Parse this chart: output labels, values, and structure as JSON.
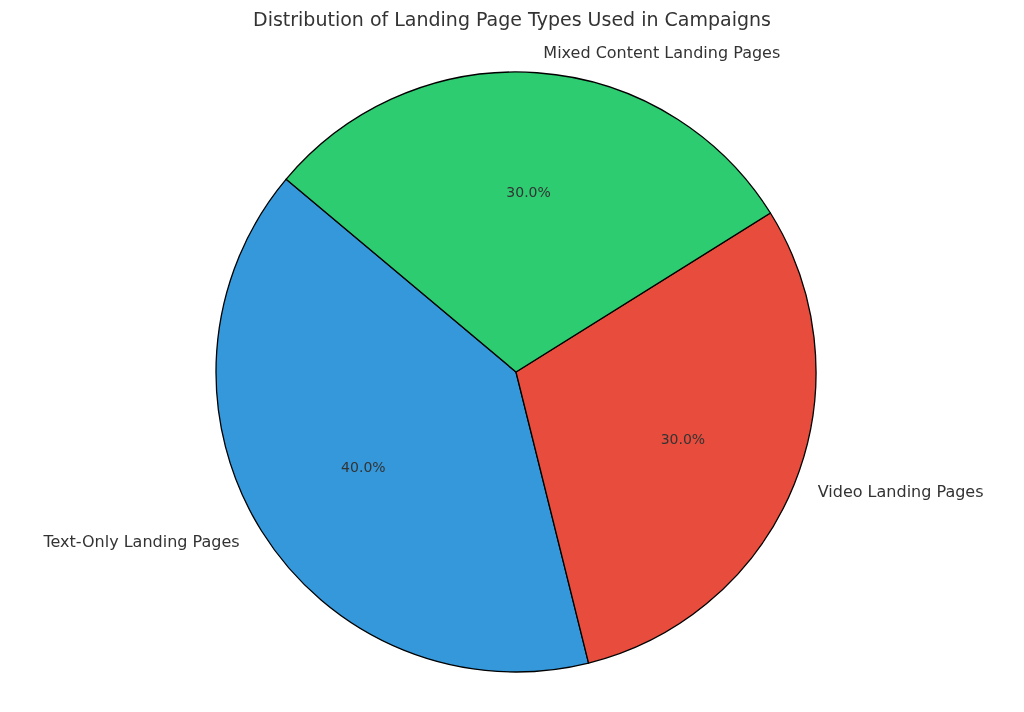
{
  "chart_data": {
    "type": "pie",
    "title": "Distribution of Landing Page Types Used in Campaigns",
    "categories": [
      "Text-Only Landing Pages",
      "Video Landing Pages",
      "Mixed Content Landing Pages"
    ],
    "values": [
      40,
      30,
      30
    ],
    "colors": [
      "#3498db",
      "#e74c3c",
      "#2ecc71"
    ],
    "value_labels": [
      "40.0%",
      "30.0%",
      "30.0%"
    ],
    "legend": false
  }
}
